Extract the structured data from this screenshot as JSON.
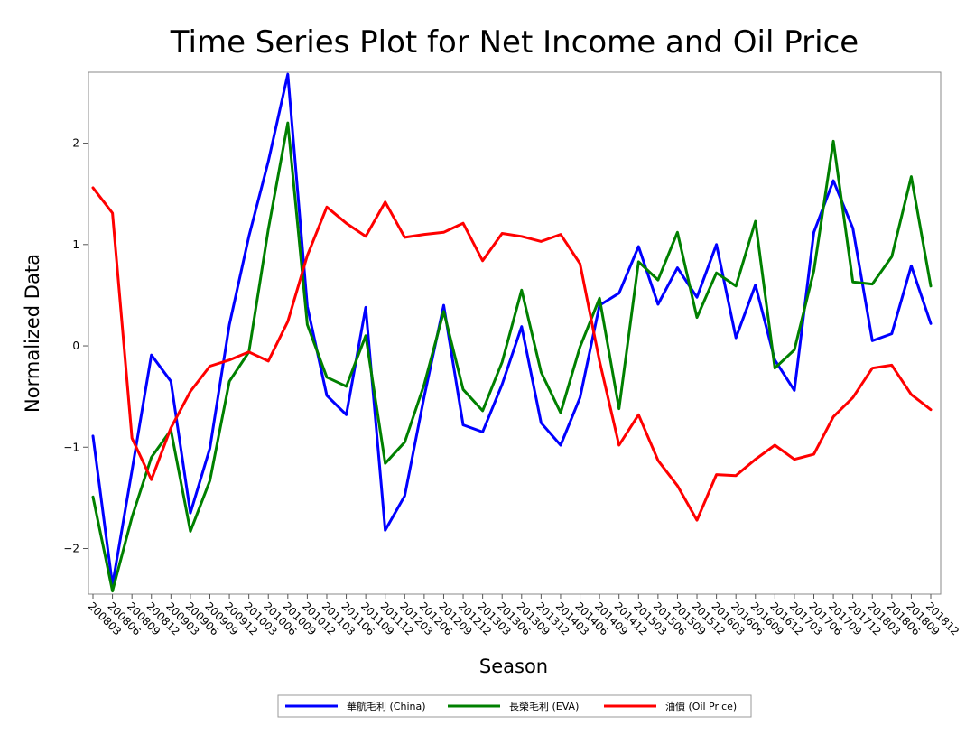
{
  "chart_data": {
    "type": "line",
    "title": "Time Series Plot for Net Income and Oil Price",
    "xlabel": "Season",
    "ylabel": "Normalized Data",
    "ylim": [
      -2.45,
      2.7
    ],
    "yticks": [
      -2,
      -1,
      0,
      1,
      2
    ],
    "grid": false,
    "legend_position": "bottom-center",
    "categories": [
      "200803",
      "200806",
      "200809",
      "200812",
      "200903",
      "200906",
      "200909",
      "200912",
      "201003",
      "201006",
      "201009",
      "201012",
      "201103",
      "201106",
      "201109",
      "201112",
      "201203",
      "201206",
      "201209",
      "201212",
      "201303",
      "201306",
      "201309",
      "201312",
      "201403",
      "201406",
      "201409",
      "201412",
      "201503",
      "201506",
      "201509",
      "201512",
      "201603",
      "201606",
      "201609",
      "201612",
      "201703",
      "201706",
      "201709",
      "201712",
      "201803",
      "201806",
      "201809",
      "201812"
    ],
    "series": [
      {
        "name": "華航毛利 (China)",
        "color": "#0000ff",
        "values": [
          -0.89,
          -2.36,
          -1.23,
          -0.09,
          -0.35,
          -1.65,
          -1.01,
          0.21,
          1.08,
          1.82,
          2.68,
          0.39,
          -0.49,
          -0.68,
          0.38,
          -1.82,
          -1.48,
          -0.5,
          0.4,
          -0.78,
          -0.85,
          -0.38,
          0.19,
          -0.76,
          -0.98,
          -0.51,
          0.4,
          0.52,
          0.98,
          0.41,
          0.77,
          0.48,
          1.0,
          0.08,
          0.6,
          -0.14,
          -0.44,
          1.12,
          1.63,
          1.16,
          0.05,
          0.12,
          0.79,
          0.22
        ]
      },
      {
        "name": "長榮毛利 (EVA)",
        "color": "#008000",
        "values": [
          -1.49,
          -2.42,
          -1.69,
          -1.1,
          -0.83,
          -1.83,
          -1.33,
          -0.35,
          -0.06,
          1.15,
          2.2,
          0.21,
          -0.31,
          -0.4,
          0.1,
          -1.16,
          -0.95,
          -0.38,
          0.34,
          -0.43,
          -0.64,
          -0.16,
          0.55,
          -0.26,
          -0.66,
          -0.01,
          0.47,
          -0.62,
          0.83,
          0.65,
          1.12,
          0.28,
          0.72,
          0.59,
          1.23,
          -0.22,
          -0.04,
          0.74,
          2.02,
          0.63,
          0.61,
          0.88,
          1.67,
          0.59
        ]
      },
      {
        "name": "油價 (Oil Price)",
        "color": "#ff0000",
        "values": [
          1.56,
          1.31,
          -0.91,
          -1.32,
          -0.81,
          -0.45,
          -0.2,
          -0.14,
          -0.06,
          -0.15,
          0.24,
          0.89,
          1.37,
          1.21,
          1.08,
          1.42,
          1.07,
          1.1,
          1.12,
          1.21,
          0.84,
          1.11,
          1.08,
          1.03,
          1.1,
          0.81,
          -0.15,
          -0.98,
          -0.68,
          -1.13,
          -1.38,
          -1.72,
          -1.27,
          -1.28,
          -1.12,
          -0.98,
          -1.12,
          -1.07,
          -0.7,
          -0.51,
          -0.22,
          -0.19,
          -0.48,
          -0.63
        ]
      }
    ]
  }
}
